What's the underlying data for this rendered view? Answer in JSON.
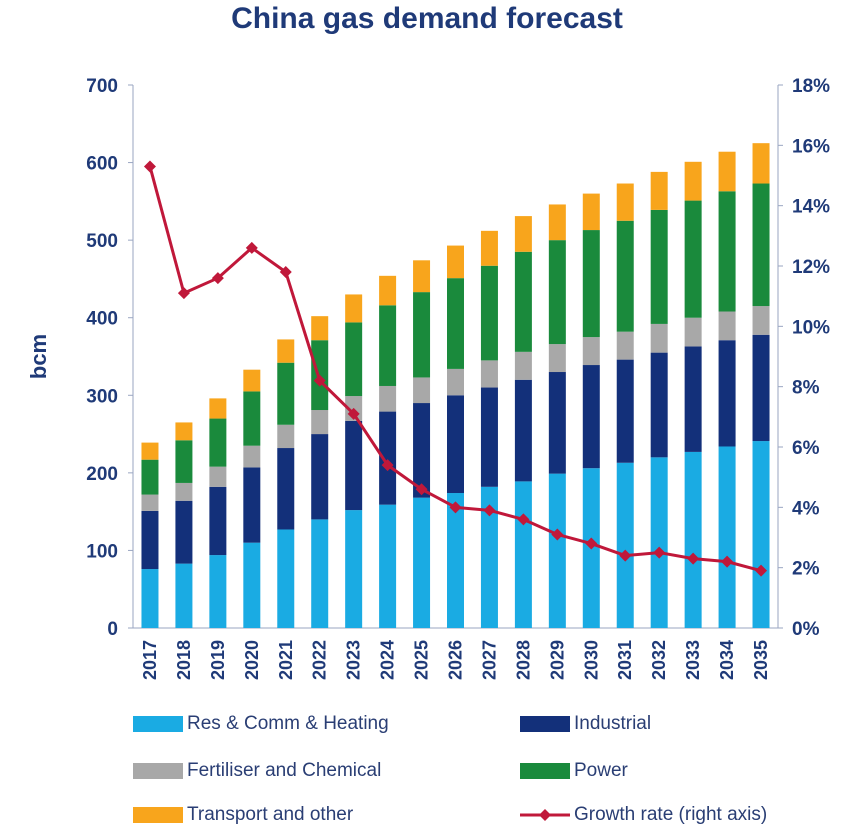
{
  "chart_data": {
    "type": "bar",
    "stacked": true,
    "title": "China gas demand forecast",
    "ylabel": "bcm",
    "ylabel_right": "",
    "categories": [
      "2017",
      "2018",
      "2019",
      "2020",
      "2021",
      "2022",
      "2023",
      "2024",
      "2025",
      "2026",
      "2027",
      "2028",
      "2029",
      "2030",
      "2031",
      "2032",
      "2033",
      "2034",
      "2035"
    ],
    "ylim": [
      0,
      700
    ],
    "yticks": [
      "0",
      "100",
      "200",
      "300",
      "400",
      "500",
      "600",
      "700"
    ],
    "ylim_right": [
      0,
      18
    ],
    "yticks_right": [
      "0%",
      "2%",
      "4%",
      "6%",
      "8%",
      "10%",
      "12%",
      "14%",
      "16%",
      "18%"
    ],
    "series": [
      {
        "name": "Res & Comm & Heating",
        "color": "#1aabe3",
        "values": [
          76,
          83,
          94,
          110,
          127,
          140,
          152,
          159,
          168,
          174,
          182,
          189,
          199,
          206,
          213,
          220,
          227,
          234,
          241
        ]
      },
      {
        "name": "Industrial",
        "color": "#13307a",
        "values": [
          75,
          81,
          88,
          97,
          105,
          110,
          115,
          120,
          122,
          126,
          128,
          131,
          131,
          133,
          133,
          135,
          136,
          137,
          137
        ]
      },
      {
        "name": "Fertiliser and Chemical",
        "color": "#a8a8a8",
        "values": [
          21,
          23,
          26,
          28,
          30,
          31,
          32,
          33,
          33,
          34,
          35,
          36,
          36,
          36,
          36,
          37,
          37,
          37,
          37
        ]
      },
      {
        "name": "Power",
        "color": "#1a8a3c",
        "values": [
          45,
          55,
          62,
          70,
          80,
          90,
          95,
          104,
          110,
          117,
          122,
          129,
          134,
          138,
          143,
          147,
          151,
          155,
          158
        ]
      },
      {
        "name": "Transport and other",
        "color": "#f8a51c",
        "values": [
          22,
          23,
          26,
          28,
          30,
          31,
          36,
          38,
          41,
          42,
          45,
          46,
          46,
          47,
          48,
          49,
          50,
          51,
          52
        ]
      }
    ],
    "line": {
      "name": "Growth rate (right axis)",
      "color": "#c0183a",
      "axis": "right",
      "values": [
        15.3,
        11.1,
        11.6,
        12.6,
        11.8,
        8.2,
        7.1,
        5.4,
        4.6,
        4.0,
        3.9,
        3.6,
        3.1,
        2.8,
        2.4,
        2.5,
        2.3,
        2.2,
        1.9
      ]
    },
    "legend_position": "bottom",
    "grid": false
  }
}
